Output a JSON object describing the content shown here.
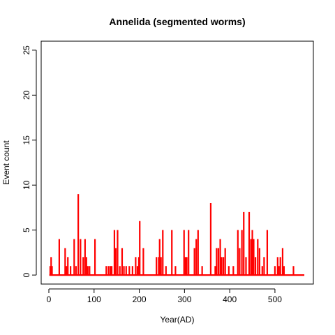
{
  "chart_data": {
    "type": "line",
    "title": "Annelida (segmented worms)",
    "xlabel": "Year(AD)",
    "ylabel": "Event count",
    "xlim": [
      -17,
      585
    ],
    "ylim": [
      -1,
      26
    ],
    "x_ticks": [
      0,
      100,
      200,
      300,
      400,
      500
    ],
    "y_ticks": [
      0,
      5,
      10,
      15,
      20,
      25
    ],
    "x_tick_labels": [
      "0",
      "100",
      "200",
      "300",
      "400",
      "500"
    ],
    "y_tick_labels": [
      "0",
      "5",
      "10",
      "15",
      "20",
      "25"
    ],
    "grid": false,
    "line_color": "#ff0000",
    "x_range": [
      1,
      565
    ],
    "series": [
      {
        "style": "histogram-spikes",
        "points": [
          [
            3,
            1
          ],
          [
            5,
            2
          ],
          [
            7,
            1
          ],
          [
            23,
            4
          ],
          [
            36,
            3
          ],
          [
            39,
            1
          ],
          [
            42,
            2
          ],
          [
            48,
            1
          ],
          [
            56,
            4
          ],
          [
            60,
            1
          ],
          [
            65,
            9
          ],
          [
            70,
            4
          ],
          [
            76,
            2
          ],
          [
            80,
            4
          ],
          [
            83,
            2
          ],
          [
            86,
            1
          ],
          [
            90,
            1
          ],
          [
            102,
            4
          ],
          [
            127,
            1
          ],
          [
            132,
            1
          ],
          [
            136,
            1
          ],
          [
            139,
            1
          ],
          [
            145,
            5
          ],
          [
            148,
            3
          ],
          [
            152,
            5
          ],
          [
            157,
            1
          ],
          [
            162,
            3
          ],
          [
            166,
            1
          ],
          [
            171,
            1
          ],
          [
            178,
            1
          ],
          [
            185,
            1
          ],
          [
            192,
            2
          ],
          [
            196,
            1
          ],
          [
            199,
            2
          ],
          [
            201,
            6
          ],
          [
            209,
            3
          ],
          [
            238,
            2
          ],
          [
            243,
            2
          ],
          [
            245,
            4
          ],
          [
            248,
            2
          ],
          [
            252,
            5
          ],
          [
            259,
            1
          ],
          [
            272,
            5
          ],
          [
            280,
            1
          ],
          [
            299,
            5
          ],
          [
            302,
            2
          ],
          [
            305,
            2
          ],
          [
            309,
            5
          ],
          [
            322,
            3
          ],
          [
            326,
            4
          ],
          [
            330,
            5
          ],
          [
            339,
            1
          ],
          [
            358,
            8
          ],
          [
            368,
            1
          ],
          [
            371,
            3
          ],
          [
            375,
            3
          ],
          [
            379,
            4
          ],
          [
            382,
            2
          ],
          [
            386,
            2
          ],
          [
            390,
            3
          ],
          [
            398,
            1
          ],
          [
            408,
            1
          ],
          [
            418,
            5
          ],
          [
            422,
            3
          ],
          [
            427,
            5
          ],
          [
            431,
            7
          ],
          [
            436,
            2
          ],
          [
            443,
            7
          ],
          [
            447,
            4
          ],
          [
            450,
            5
          ],
          [
            453,
            4
          ],
          [
            457,
            2
          ],
          [
            462,
            4
          ],
          [
            466,
            3
          ],
          [
            472,
            1
          ],
          [
            476,
            2
          ],
          [
            483,
            5
          ],
          [
            500,
            1
          ],
          [
            506,
            2
          ],
          [
            509,
            1
          ],
          [
            512,
            2
          ],
          [
            517,
            3
          ],
          [
            520,
            1
          ],
          [
            541,
            1
          ]
        ]
      }
    ]
  }
}
